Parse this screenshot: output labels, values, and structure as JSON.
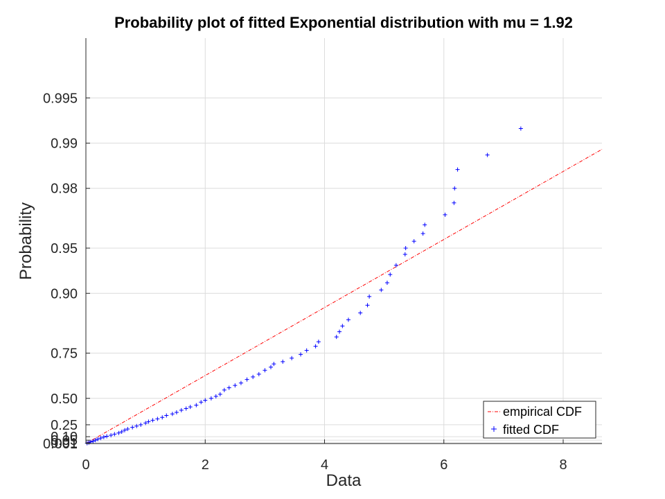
{
  "chart_data": {
    "type": "scatter",
    "title": "Probability plot of fitted Exponential distribution with mu = 1.92",
    "xlabel": "Data",
    "ylabel": "Probability",
    "xlim": [
      0,
      8.65
    ],
    "y_scale": "exponential probability",
    "ylim": [
      0,
      0.998
    ],
    "x_ticks": [
      0,
      2,
      4,
      6,
      8
    ],
    "x_tick_labels": [
      "0",
      "2",
      "4",
      "6",
      "8"
    ],
    "y_ticks": [
      0.001,
      0.01,
      0.05,
      0.1,
      0.25,
      0.5,
      0.75,
      0.9,
      0.95,
      0.98,
      0.99,
      0.995
    ],
    "y_tick_labels": [
      "0.001",
      "0.01",
      "0.05",
      "0.10",
      "0.25",
      "0.50",
      "0.75",
      "0.90",
      "0.95",
      "0.98",
      "0.99",
      "0.995"
    ],
    "grid": true,
    "legend_position": "bottom-right",
    "series": [
      {
        "name": "empirical CDF",
        "style": "dash-dot line",
        "color": "#ff0000",
        "x": [
          0,
          8.65
        ],
        "y": [
          0,
          0.989
        ]
      },
      {
        "name": "fitted CDF",
        "style": "plus markers",
        "color": "#0000ff",
        "x": [
          0.02,
          0.05,
          0.08,
          0.12,
          0.16,
          0.2,
          0.25,
          0.3,
          0.35,
          0.42,
          0.48,
          0.55,
          0.6,
          0.65,
          0.7,
          0.78,
          0.85,
          0.92,
          1.0,
          1.05,
          1.12,
          1.2,
          1.28,
          1.35,
          1.45,
          1.52,
          1.6,
          1.68,
          1.75,
          1.85,
          1.93,
          2.0,
          2.1,
          2.18,
          2.25,
          2.32,
          2.4,
          2.5,
          2.6,
          2.7,
          2.8,
          2.9,
          3.0,
          3.1,
          3.15,
          3.3,
          3.45,
          3.6,
          3.7,
          3.85,
          3.9,
          4.2,
          4.25,
          4.3,
          4.4,
          4.6,
          4.72,
          4.75,
          4.95,
          5.05,
          5.1,
          5.2,
          5.35,
          5.36,
          5.5,
          5.65,
          5.68,
          6.02,
          6.17,
          6.18,
          6.23,
          6.73,
          7.29
        ],
        "y": [
          0.005,
          0.015,
          0.025,
          0.035,
          0.05,
          0.065,
          0.08,
          0.095,
          0.105,
          0.12,
          0.135,
          0.15,
          0.165,
          0.185,
          0.2,
          0.22,
          0.235,
          0.25,
          0.27,
          0.285,
          0.3,
          0.315,
          0.33,
          0.35,
          0.365,
          0.38,
          0.4,
          0.415,
          0.43,
          0.445,
          0.47,
          0.485,
          0.5,
          0.515,
          0.53,
          0.56,
          0.575,
          0.59,
          0.605,
          0.625,
          0.64,
          0.655,
          0.675,
          0.69,
          0.705,
          0.715,
          0.73,
          0.745,
          0.76,
          0.775,
          0.79,
          0.805,
          0.82,
          0.835,
          0.85,
          0.865,
          0.88,
          0.895,
          0.905,
          0.915,
          0.925,
          0.935,
          0.945,
          0.95,
          0.955,
          0.96,
          0.965,
          0.97,
          0.975,
          0.98,
          0.985,
          0.988,
          0.992
        ]
      }
    ]
  }
}
